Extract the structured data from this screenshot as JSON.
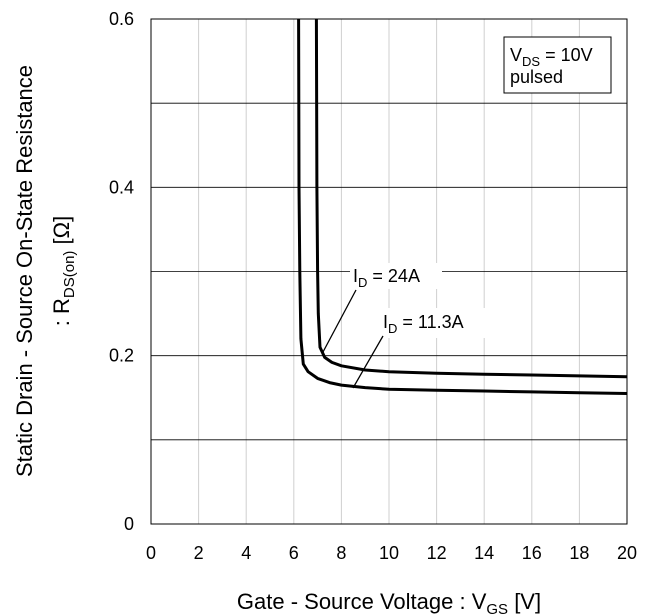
{
  "chart_data": {
    "type": "line",
    "xlabel": {
      "main": "Gate - Source Voltage : V",
      "sub": "GS",
      "unit": " [V]"
    },
    "ylabel": {
      "line1": "Static Drain - Source On-State Resistance",
      "line2_prefix": ": R",
      "line2_sub": "DS(on)",
      "line2_unit": " [Ω]"
    },
    "xlim": [
      0,
      20
    ],
    "ylim": [
      0,
      0.6
    ],
    "x_ticks": [
      "0",
      "2",
      "4",
      "6",
      "8",
      "10",
      "12",
      "14",
      "16",
      "18",
      "20"
    ],
    "y_tick_labels": [
      {
        "value": 0,
        "label": "0"
      },
      {
        "value": 0.2,
        "label": "0.2"
      },
      {
        "value": 0.4,
        "label": "0.4"
      },
      {
        "value": 0.6,
        "label": "0.6"
      }
    ],
    "grid": true,
    "condition_box": {
      "prefix": "V",
      "sub": "DS",
      "suffix": " = 10V",
      "line2": "pulsed"
    },
    "series": [
      {
        "name_prefix": "I",
        "name_sub": "D",
        "name_suffix": " = 24A",
        "x": [
          6.95,
          6.97,
          7.0,
          7.03,
          7.1,
          7.3,
          7.6,
          8.0,
          9.0,
          10,
          12,
          14,
          16,
          18,
          20
        ],
        "y": [
          0.6,
          0.4,
          0.3,
          0.25,
          0.21,
          0.198,
          0.192,
          0.188,
          0.183,
          0.181,
          0.179,
          0.178,
          0.177,
          0.176,
          0.175
        ]
      },
      {
        "name_prefix": "I",
        "name_sub": "D",
        "name_suffix": " = 11.3A",
        "x": [
          6.2,
          6.22,
          6.25,
          6.3,
          6.4,
          6.6,
          7.0,
          7.5,
          8.0,
          9.0,
          10,
          12,
          14,
          16,
          18,
          20
        ],
        "y": [
          0.6,
          0.4,
          0.3,
          0.22,
          0.19,
          0.181,
          0.173,
          0.168,
          0.165,
          0.162,
          0.16,
          0.159,
          0.158,
          0.157,
          0.156,
          0.155
        ]
      }
    ]
  }
}
